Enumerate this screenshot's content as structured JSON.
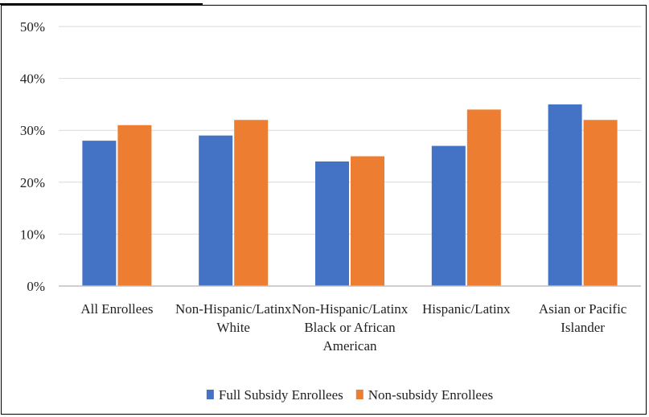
{
  "chart_data": {
    "type": "bar",
    "title": "",
    "xlabel": "",
    "ylabel": "",
    "categories": [
      [
        "All Enrollees"
      ],
      [
        "Non-Hispanic/Latinx",
        "White"
      ],
      [
        "Non-Hispanic/Latinx",
        "Black or African",
        "American"
      ],
      [
        "Hispanic/Latinx"
      ],
      [
        "Asian or Pacific",
        "Islander"
      ]
    ],
    "series": [
      {
        "name": "Full Subsidy Enrollees",
        "color": "#4472C4",
        "values": [
          28,
          29,
          24,
          27,
          35
        ]
      },
      {
        "name": "Non-subsidy Enrollees",
        "color": "#ED7D31",
        "values": [
          31,
          32,
          25,
          34,
          32
        ]
      }
    ],
    "ylim": [
      0,
      50
    ],
    "yticks": [
      0,
      10,
      20,
      30,
      40,
      50
    ],
    "ytick_labels": [
      "0%",
      "10%",
      "20%",
      "30%",
      "40%",
      "50%"
    ],
    "grid": true,
    "gridline_color": "#D9D9D9",
    "legend": "bottom"
  }
}
